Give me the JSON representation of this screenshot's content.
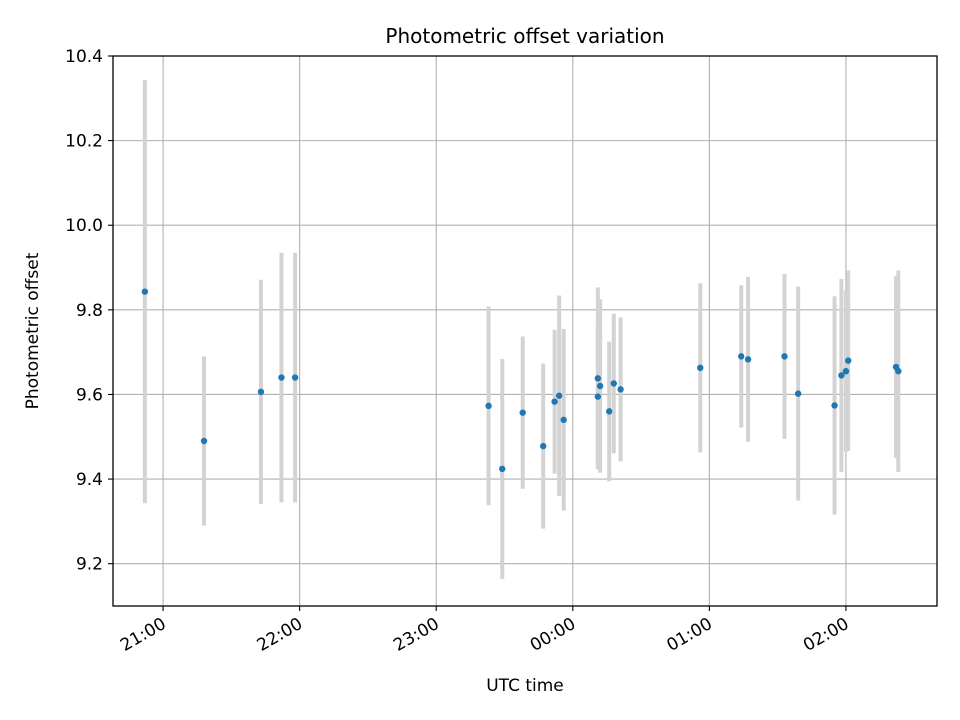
{
  "chart_data": {
    "type": "scatter",
    "title": "Photometric offset variation",
    "xlabel": "UTC time",
    "ylabel": "Photometric offset",
    "x_axis_type": "time",
    "x_range": [
      "20:38",
      "02:40"
    ],
    "ylim": [
      9.1,
      10.4
    ],
    "x_ticks": [
      "21:00",
      "22:00",
      "23:00",
      "00:00",
      "01:00",
      "02:00"
    ],
    "y_ticks": [
      9.2,
      9.4,
      9.6,
      9.8,
      10.0,
      10.2,
      10.4
    ],
    "y_tick_labels": [
      "9.2",
      "9.4",
      "9.6",
      "9.8",
      "10.0",
      "10.2",
      "10.4"
    ],
    "grid": true,
    "point_color": "#1f77b4",
    "errorbar_color": "#d3d3d3",
    "points": [
      {
        "x": "20:52",
        "y": 9.843,
        "err": 0.5
      },
      {
        "x": "21:18",
        "y": 9.49,
        "err": 0.2
      },
      {
        "x": "21:43",
        "y": 9.606,
        "err": 0.265
      },
      {
        "x": "21:52",
        "y": 9.64,
        "err": 0.295
      },
      {
        "x": "21:58",
        "y": 9.64,
        "err": 0.295
      },
      {
        "x": "23:23",
        "y": 9.573,
        "err": 0.235
      },
      {
        "x": "23:29",
        "y": 9.424,
        "err": 0.26
      },
      {
        "x": "23:38",
        "y": 9.557,
        "err": 0.18
      },
      {
        "x": "23:47",
        "y": 9.478,
        "err": 0.195
      },
      {
        "x": "23:52",
        "y": 9.583,
        "err": 0.17
      },
      {
        "x": "23:54",
        "y": 9.597,
        "err": 0.237
      },
      {
        "x": "23:56",
        "y": 9.54,
        "err": 0.215
      },
      {
        "x": "00:11",
        "y": 9.595,
        "err": 0.17
      },
      {
        "x": "00:11",
        "y": 9.638,
        "err": 0.215
      },
      {
        "x": "00:12",
        "y": 9.62,
        "err": 0.205
      },
      {
        "x": "00:16",
        "y": 9.56,
        "err": 0.165
      },
      {
        "x": "00:18",
        "y": 9.626,
        "err": 0.165
      },
      {
        "x": "00:21",
        "y": 9.612,
        "err": 0.17
      },
      {
        "x": "00:56",
        "y": 9.663,
        "err": 0.2
      },
      {
        "x": "01:14",
        "y": 9.69,
        "err": 0.168
      },
      {
        "x": "01:17",
        "y": 9.683,
        "err": 0.195
      },
      {
        "x": "01:33",
        "y": 9.69,
        "err": 0.195
      },
      {
        "x": "01:39",
        "y": 9.602,
        "err": 0.253
      },
      {
        "x": "01:55",
        "y": 9.574,
        "err": 0.258
      },
      {
        "x": "01:58",
        "y": 9.645,
        "err": 0.228
      },
      {
        "x": "02:00",
        "y": 9.655,
        "err": 0.19
      },
      {
        "x": "02:01",
        "y": 9.68,
        "err": 0.213
      },
      {
        "x": "02:22",
        "y": 9.665,
        "err": 0.215
      },
      {
        "x": "02:23",
        "y": 9.655,
        "err": 0.238
      }
    ]
  }
}
